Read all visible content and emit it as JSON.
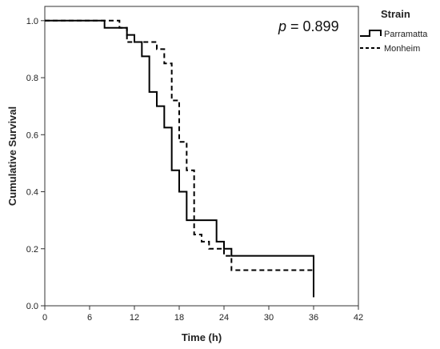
{
  "chart_data": {
    "type": "line",
    "step": true,
    "xlabel": "Time (h)",
    "ylabel": "Cumulative Survival",
    "xlim": [
      0,
      42
    ],
    "ylim": [
      0.0,
      1.05
    ],
    "xticks": [
      "0",
      "6",
      "12",
      "18",
      "24",
      "30",
      "36",
      "42"
    ],
    "yticks": [
      "0.0",
      "0.2",
      "0.4",
      "0.6",
      "0.8",
      "1.0"
    ],
    "grid": false,
    "legend": {
      "title": "Strain",
      "placement": "right"
    },
    "annotation": {
      "italic": "p",
      "text": " = 0.899"
    },
    "series": [
      {
        "name": "Parramatta",
        "style": "solid",
        "color": "#000000",
        "x": [
          0,
          8,
          10,
          11,
          12,
          13,
          14,
          15,
          16,
          17,
          18,
          19,
          23,
          24,
          25,
          36,
          36
        ],
        "y": [
          1.0,
          0.975,
          0.975,
          0.95,
          0.925,
          0.875,
          0.75,
          0.7,
          0.625,
          0.475,
          0.4,
          0.3,
          0.225,
          0.2,
          0.175,
          0.175,
          0.03
        ]
      },
      {
        "name": "Monheim",
        "style": "dashed",
        "color": "#000000",
        "x": [
          0,
          9,
          10,
          11,
          13,
          14,
          15,
          16,
          17,
          18,
          19,
          20,
          21,
          22,
          24,
          25,
          36,
          36
        ],
        "y": [
          1.0,
          1.0,
          0.975,
          0.925,
          0.925,
          0.925,
          0.9,
          0.85,
          0.72,
          0.575,
          0.475,
          0.25,
          0.225,
          0.2,
          0.175,
          0.125,
          0.125,
          0.05
        ]
      }
    ]
  }
}
